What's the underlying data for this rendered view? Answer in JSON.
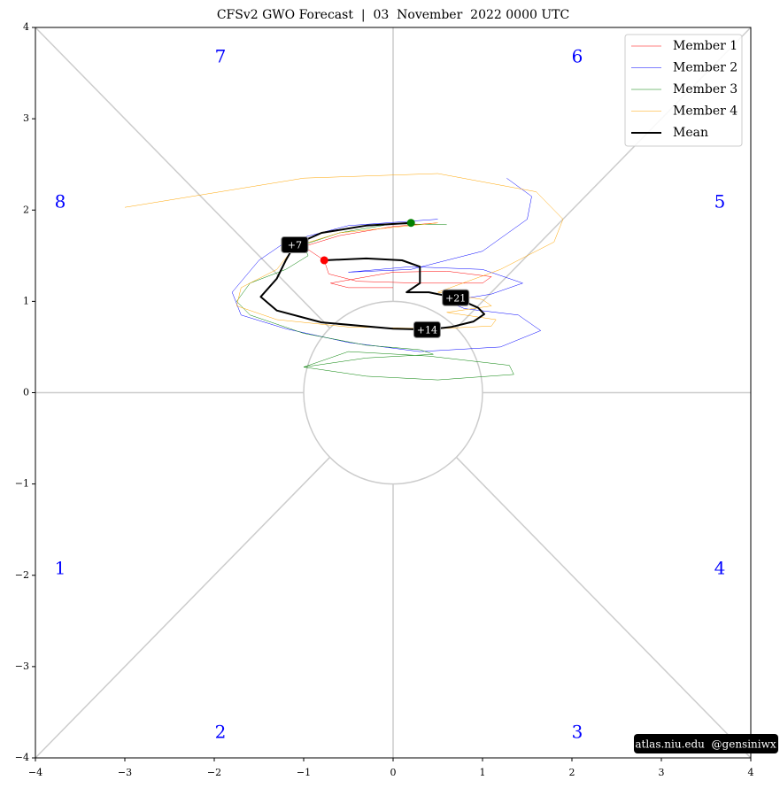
{
  "chart_data": {
    "type": "line",
    "title": "CFSv2 GWO Forecast  |  03  November  2022 0000 UTC",
    "xlim": [
      -4,
      4
    ],
    "ylim": [
      -4,
      4
    ],
    "xticks": [
      {
        "value": -4,
        "label": "−4"
      },
      {
        "value": -3,
        "label": "−3"
      },
      {
        "value": -2,
        "label": "−2"
      },
      {
        "value": -1,
        "label": "−1"
      },
      0,
      1,
      2,
      3,
      4
    ],
    "yticks": [
      {
        "value": -4,
        "label": "−4"
      },
      {
        "value": -3,
        "label": "−3"
      },
      {
        "value": -2,
        "label": "−2"
      },
      {
        "value": -1,
        "label": "−1"
      },
      0,
      1,
      2,
      3,
      4
    ],
    "legend": "upper right",
    "phase_labels": [
      "1",
      "2",
      "3",
      "4",
      "5",
      "6",
      "7",
      "8"
    ],
    "annotations": [
      "+7",
      "+14",
      "+21"
    ],
    "watermark": "atlas.niu.edu  @gensiniwx",
    "start_color": "#008000",
    "end_color": "#ff0000",
    "series": [
      {
        "name": "Member 1",
        "color": "#ff0000",
        "linewidth": 0.5,
        "x": [
          0.5,
          0,
          -0.6,
          -1.0,
          -0.77,
          -0.72,
          -0.4,
          0.3,
          1.0,
          1.1,
          0.6,
          0,
          -0.7,
          -0.5,
          0
        ],
        "values": [
          1.86,
          1.82,
          1.72,
          1.6,
          1.45,
          1.3,
          1.22,
          1.2,
          1.2,
          1.27,
          1.33,
          1.32,
          1.2,
          1.15,
          1.15
        ]
      },
      {
        "name": "Member 2",
        "color": "#0000ff",
        "linewidth": 0.5,
        "x": [
          0.5,
          -0.5,
          -1.2,
          -1.5,
          -1.8,
          -1.7,
          -1.2,
          -0.5,
          0.3,
          1.2,
          1.65,
          1.4,
          0.8,
          0.6,
          1.1,
          1.45,
          1.0,
          0.2,
          -0.5,
          0.2,
          1.0,
          1.5,
          1.55,
          1.27
        ],
        "values": [
          1.9,
          1.83,
          1.65,
          1.45,
          1.1,
          0.85,
          0.7,
          0.55,
          0.45,
          0.5,
          0.68,
          0.85,
          0.92,
          1.0,
          1.08,
          1.2,
          1.35,
          1.38,
          1.32,
          1.35,
          1.55,
          1.9,
          2.15,
          2.35
        ]
      },
      {
        "name": "Member 3",
        "color": "#008000",
        "linewidth": 0.5,
        "x": [
          0.6,
          0,
          -0.6,
          -1.0,
          -0.95,
          -1.2,
          -1.6,
          -1.75,
          -1.6,
          -1.0,
          -0.3,
          0.3,
          0.45,
          -0.3,
          -1.0,
          -0.5,
          0.4,
          1.3,
          1.35,
          0.5,
          -0.3,
          -1.0
        ],
        "values": [
          1.84,
          1.85,
          1.75,
          1.62,
          1.5,
          1.35,
          1.2,
          1.0,
          0.85,
          0.65,
          0.52,
          0.47,
          0.42,
          0.38,
          0.28,
          0.45,
          0.4,
          0.3,
          0.2,
          0.14,
          0.18,
          0.28
        ]
      },
      {
        "name": "Member 4",
        "color": "#ffa500",
        "linewidth": 0.5,
        "x": [
          0.5,
          -0.6,
          -1.1,
          -1.3,
          -1.7,
          -1.75,
          -1.3,
          -0.5,
          0.5,
          1.1,
          1.15,
          0.6,
          1.1,
          1.0,
          0.5,
          1.2,
          1.8,
          1.9,
          1.6,
          0.5,
          -1.0,
          -3.0
        ],
        "values": [
          1.86,
          1.75,
          1.6,
          1.35,
          1.15,
          0.95,
          0.8,
          0.72,
          0.7,
          0.73,
          0.8,
          0.88,
          0.95,
          1.02,
          1.1,
          1.35,
          1.65,
          1.9,
          2.2,
          2.4,
          2.35,
          2.03
        ]
      },
      {
        "name": "Mean",
        "color": "#000000",
        "linewidth": 2,
        "x": [
          0.2,
          -0.3,
          -0.8,
          -1.1,
          -1.2,
          -1.3,
          -1.48,
          -1.3,
          -0.8,
          0,
          0.38,
          0.65,
          0.9,
          1.02,
          0.95,
          0.7,
          0.4,
          0.15,
          0.3,
          0.3,
          0.1,
          -0.3,
          -0.77
        ],
        "values": [
          1.86,
          1.83,
          1.75,
          1.62,
          1.45,
          1.25,
          1.05,
          0.9,
          0.77,
          0.7,
          0.69,
          0.72,
          0.78,
          0.86,
          0.93,
          1.04,
          1.1,
          1.1,
          1.2,
          1.38,
          1.45,
          1.47,
          1.45
        ]
      }
    ]
  }
}
